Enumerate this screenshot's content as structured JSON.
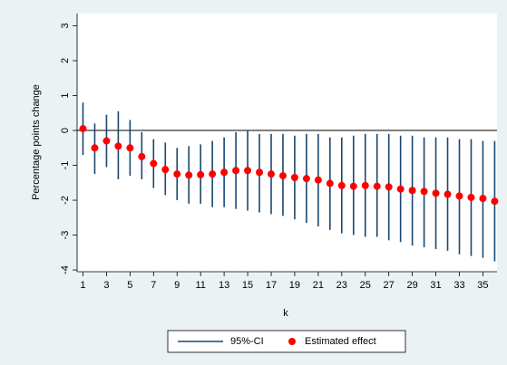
{
  "chart_data": {
    "type": "errorbar",
    "x_label": "k",
    "y_label": "Percentage points change",
    "x": [
      1,
      2,
      3,
      4,
      5,
      6,
      7,
      8,
      9,
      10,
      11,
      12,
      13,
      14,
      15,
      16,
      17,
      18,
      19,
      20,
      21,
      22,
      23,
      24,
      25,
      26,
      27,
      28,
      29,
      30,
      31,
      32,
      33,
      34,
      35,
      36
    ],
    "series": [
      {
        "name": "95%-CI",
        "color": "#1a476f",
        "lower": [
          -0.7,
          -1.25,
          -1.05,
          -1.4,
          -1.3,
          -1.4,
          -1.65,
          -1.85,
          -2.0,
          -2.1,
          -2.1,
          -2.2,
          -2.2,
          -2.25,
          -2.3,
          -2.35,
          -2.4,
          -2.45,
          -2.55,
          -2.65,
          -2.75,
          -2.85,
          -2.95,
          -3.0,
          -3.05,
          -3.05,
          -3.15,
          -3.2,
          -3.3,
          -3.35,
          -3.4,
          -3.45,
          -3.55,
          -3.6,
          -3.65,
          -3.75
        ],
        "upper": [
          0.8,
          0.2,
          0.45,
          0.55,
          0.3,
          -0.05,
          -0.25,
          -0.35,
          -0.5,
          -0.45,
          -0.4,
          -0.3,
          -0.2,
          -0.05,
          0.0,
          -0.1,
          -0.1,
          -0.1,
          -0.15,
          -0.1,
          -0.1,
          -0.2,
          -0.2,
          -0.15,
          -0.1,
          -0.1,
          -0.1,
          -0.15,
          -0.15,
          -0.2,
          -0.2,
          -0.2,
          -0.25,
          -0.25,
          -0.3,
          -0.3
        ]
      },
      {
        "name": "Estimated effect",
        "color": "#ff0000",
        "values": [
          0.05,
          -0.5,
          -0.3,
          -0.45,
          -0.5,
          -0.75,
          -0.95,
          -1.12,
          -1.25,
          -1.28,
          -1.27,
          -1.25,
          -1.2,
          -1.15,
          -1.15,
          -1.2,
          -1.25,
          -1.3,
          -1.35,
          -1.38,
          -1.42,
          -1.52,
          -1.58,
          -1.6,
          -1.58,
          -1.6,
          -1.62,
          -1.68,
          -1.72,
          -1.75,
          -1.8,
          -1.83,
          -1.88,
          -1.92,
          -1.95,
          -2.03
        ]
      }
    ],
    "xlim": [
      0.5,
      36.2
    ],
    "ylim": [
      -4.05,
      3.35
    ],
    "xticks": [
      1,
      3,
      5,
      7,
      9,
      11,
      13,
      15,
      17,
      19,
      21,
      23,
      25,
      27,
      29,
      31,
      33,
      35
    ],
    "yticks": [
      -4,
      -3,
      -2,
      -1,
      0,
      1,
      2,
      3
    ],
    "reference_line": 0,
    "legend": "bottom"
  }
}
